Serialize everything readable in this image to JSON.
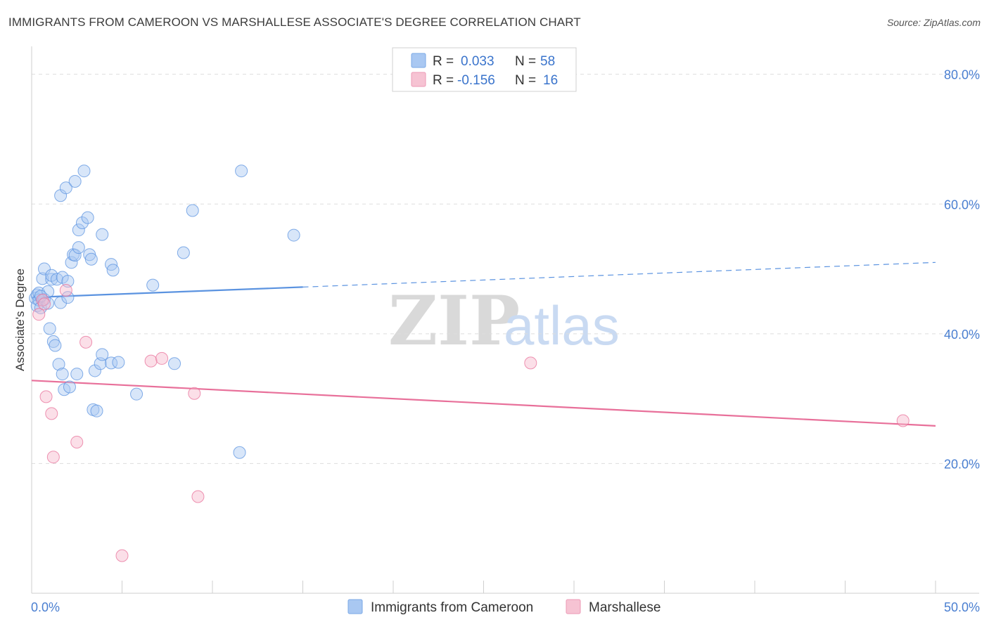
{
  "title": "IMMIGRANTS FROM CAMEROON VS MARSHALLESE ASSOCIATE'S DEGREE CORRELATION CHART",
  "source": "Source: ZipAtlas.com",
  "watermark": {
    "zip": "ZIP",
    "atlas": "atlas"
  },
  "colors": {
    "blue": "#5b93e0",
    "blue_fill": "#a9c8f2",
    "pink": "#e8709a",
    "pink_fill": "#f6b8cc",
    "axis_text": "#4a7fd1",
    "grid": "#dddddd"
  },
  "legend": {
    "rows": [
      {
        "r_label": "R =",
        "r_value": "0.033",
        "n_label": "N =",
        "n_value": "58",
        "series": "blue"
      },
      {
        "r_label": "R =",
        "r_value": "-0.156",
        "n_label": "N =",
        "n_value": "16",
        "series": "pink"
      }
    ]
  },
  "bottom_legend": [
    {
      "label": "Immigrants from Cameroon",
      "series": "blue"
    },
    {
      "label": "Marshallese",
      "series": "pink"
    }
  ],
  "chart_data": {
    "type": "scatter",
    "title": "IMMIGRANTS FROM CAMEROON VS MARSHALLESE ASSOCIATE'S DEGREE CORRELATION CHART",
    "xlabel": "",
    "ylabel": "Associate's Degree",
    "xlim": [
      0,
      50
    ],
    "ylim": [
      0,
      83
    ],
    "x_tick_labels": [
      {
        "value": 0,
        "label": "0.0%"
      },
      {
        "value": 50,
        "label": "50.0%"
      }
    ],
    "y_tick_labels": [
      {
        "value": 20,
        "label": "20.0%"
      },
      {
        "value": 40,
        "label": "40.0%"
      },
      {
        "value": 60,
        "label": "60.0%"
      },
      {
        "value": 80,
        "label": "80.0%"
      }
    ],
    "grid": true,
    "series": [
      {
        "name": "Immigrants from Cameroon",
        "color": "blue",
        "r": 0.033,
        "n": 58,
        "trend": {
          "x0": 0,
          "y0": 45.6,
          "x1": 15,
          "y1": 47.2,
          "dash_x1": 50,
          "dash_y1": 51.0
        },
        "points": [
          [
            0.2,
            45.5
          ],
          [
            0.3,
            46.0
          ],
          [
            0.3,
            44.3
          ],
          [
            0.4,
            45.2
          ],
          [
            0.4,
            46.3
          ],
          [
            0.5,
            44.0
          ],
          [
            0.6,
            48.5
          ],
          [
            0.7,
            45.3
          ],
          [
            0.7,
            50.0
          ],
          [
            0.9,
            44.7
          ],
          [
            0.9,
            46.5
          ],
          [
            1.0,
            40.8
          ],
          [
            1.1,
            48.4
          ],
          [
            1.1,
            49.0
          ],
          [
            1.2,
            38.8
          ],
          [
            1.3,
            38.2
          ],
          [
            1.4,
            48.4
          ],
          [
            1.5,
            35.3
          ],
          [
            1.6,
            61.3
          ],
          [
            1.6,
            44.8
          ],
          [
            1.7,
            48.7
          ],
          [
            1.7,
            33.8
          ],
          [
            1.8,
            31.4
          ],
          [
            1.9,
            62.5
          ],
          [
            2.0,
            48.1
          ],
          [
            2.0,
            45.6
          ],
          [
            2.1,
            31.8
          ],
          [
            2.2,
            51.0
          ],
          [
            2.3,
            52.2
          ],
          [
            2.4,
            52.1
          ],
          [
            2.4,
            63.5
          ],
          [
            2.5,
            33.8
          ],
          [
            2.6,
            56.0
          ],
          [
            2.6,
            53.3
          ],
          [
            2.8,
            57.1
          ],
          [
            2.9,
            65.1
          ],
          [
            3.1,
            57.9
          ],
          [
            3.2,
            52.2
          ],
          [
            3.3,
            51.5
          ],
          [
            3.4,
            28.3
          ],
          [
            3.5,
            34.3
          ],
          [
            3.6,
            28.1
          ],
          [
            3.8,
            35.4
          ],
          [
            3.9,
            55.3
          ],
          [
            3.9,
            36.8
          ],
          [
            4.4,
            35.5
          ],
          [
            4.4,
            50.7
          ],
          [
            4.5,
            49.8
          ],
          [
            4.8,
            35.6
          ],
          [
            5.8,
            30.7
          ],
          [
            6.7,
            47.5
          ],
          [
            7.9,
            35.4
          ],
          [
            8.4,
            52.5
          ],
          [
            8.9,
            59.0
          ],
          [
            11.5,
            21.7
          ],
          [
            11.6,
            65.1
          ],
          [
            14.5,
            55.2
          ],
          [
            0.5,
            45.8
          ]
        ]
      },
      {
        "name": "Marshallese",
        "color": "pink",
        "r": -0.156,
        "n": 16,
        "trend": {
          "x0": 0,
          "y0": 32.8,
          "x1": 50,
          "y1": 25.8
        },
        "points": [
          [
            0.4,
            43.0
          ],
          [
            0.6,
            45.2
          ],
          [
            0.8,
            30.3
          ],
          [
            1.1,
            27.7
          ],
          [
            1.2,
            21.0
          ],
          [
            1.9,
            46.7
          ],
          [
            2.5,
            23.3
          ],
          [
            3.0,
            38.7
          ],
          [
            5.0,
            5.8
          ],
          [
            6.6,
            35.8
          ],
          [
            7.2,
            36.2
          ],
          [
            9.0,
            30.8
          ],
          [
            9.2,
            14.9
          ],
          [
            27.6,
            35.5
          ],
          [
            48.2,
            26.6
          ],
          [
            0.7,
            44.6
          ]
        ]
      }
    ]
  }
}
